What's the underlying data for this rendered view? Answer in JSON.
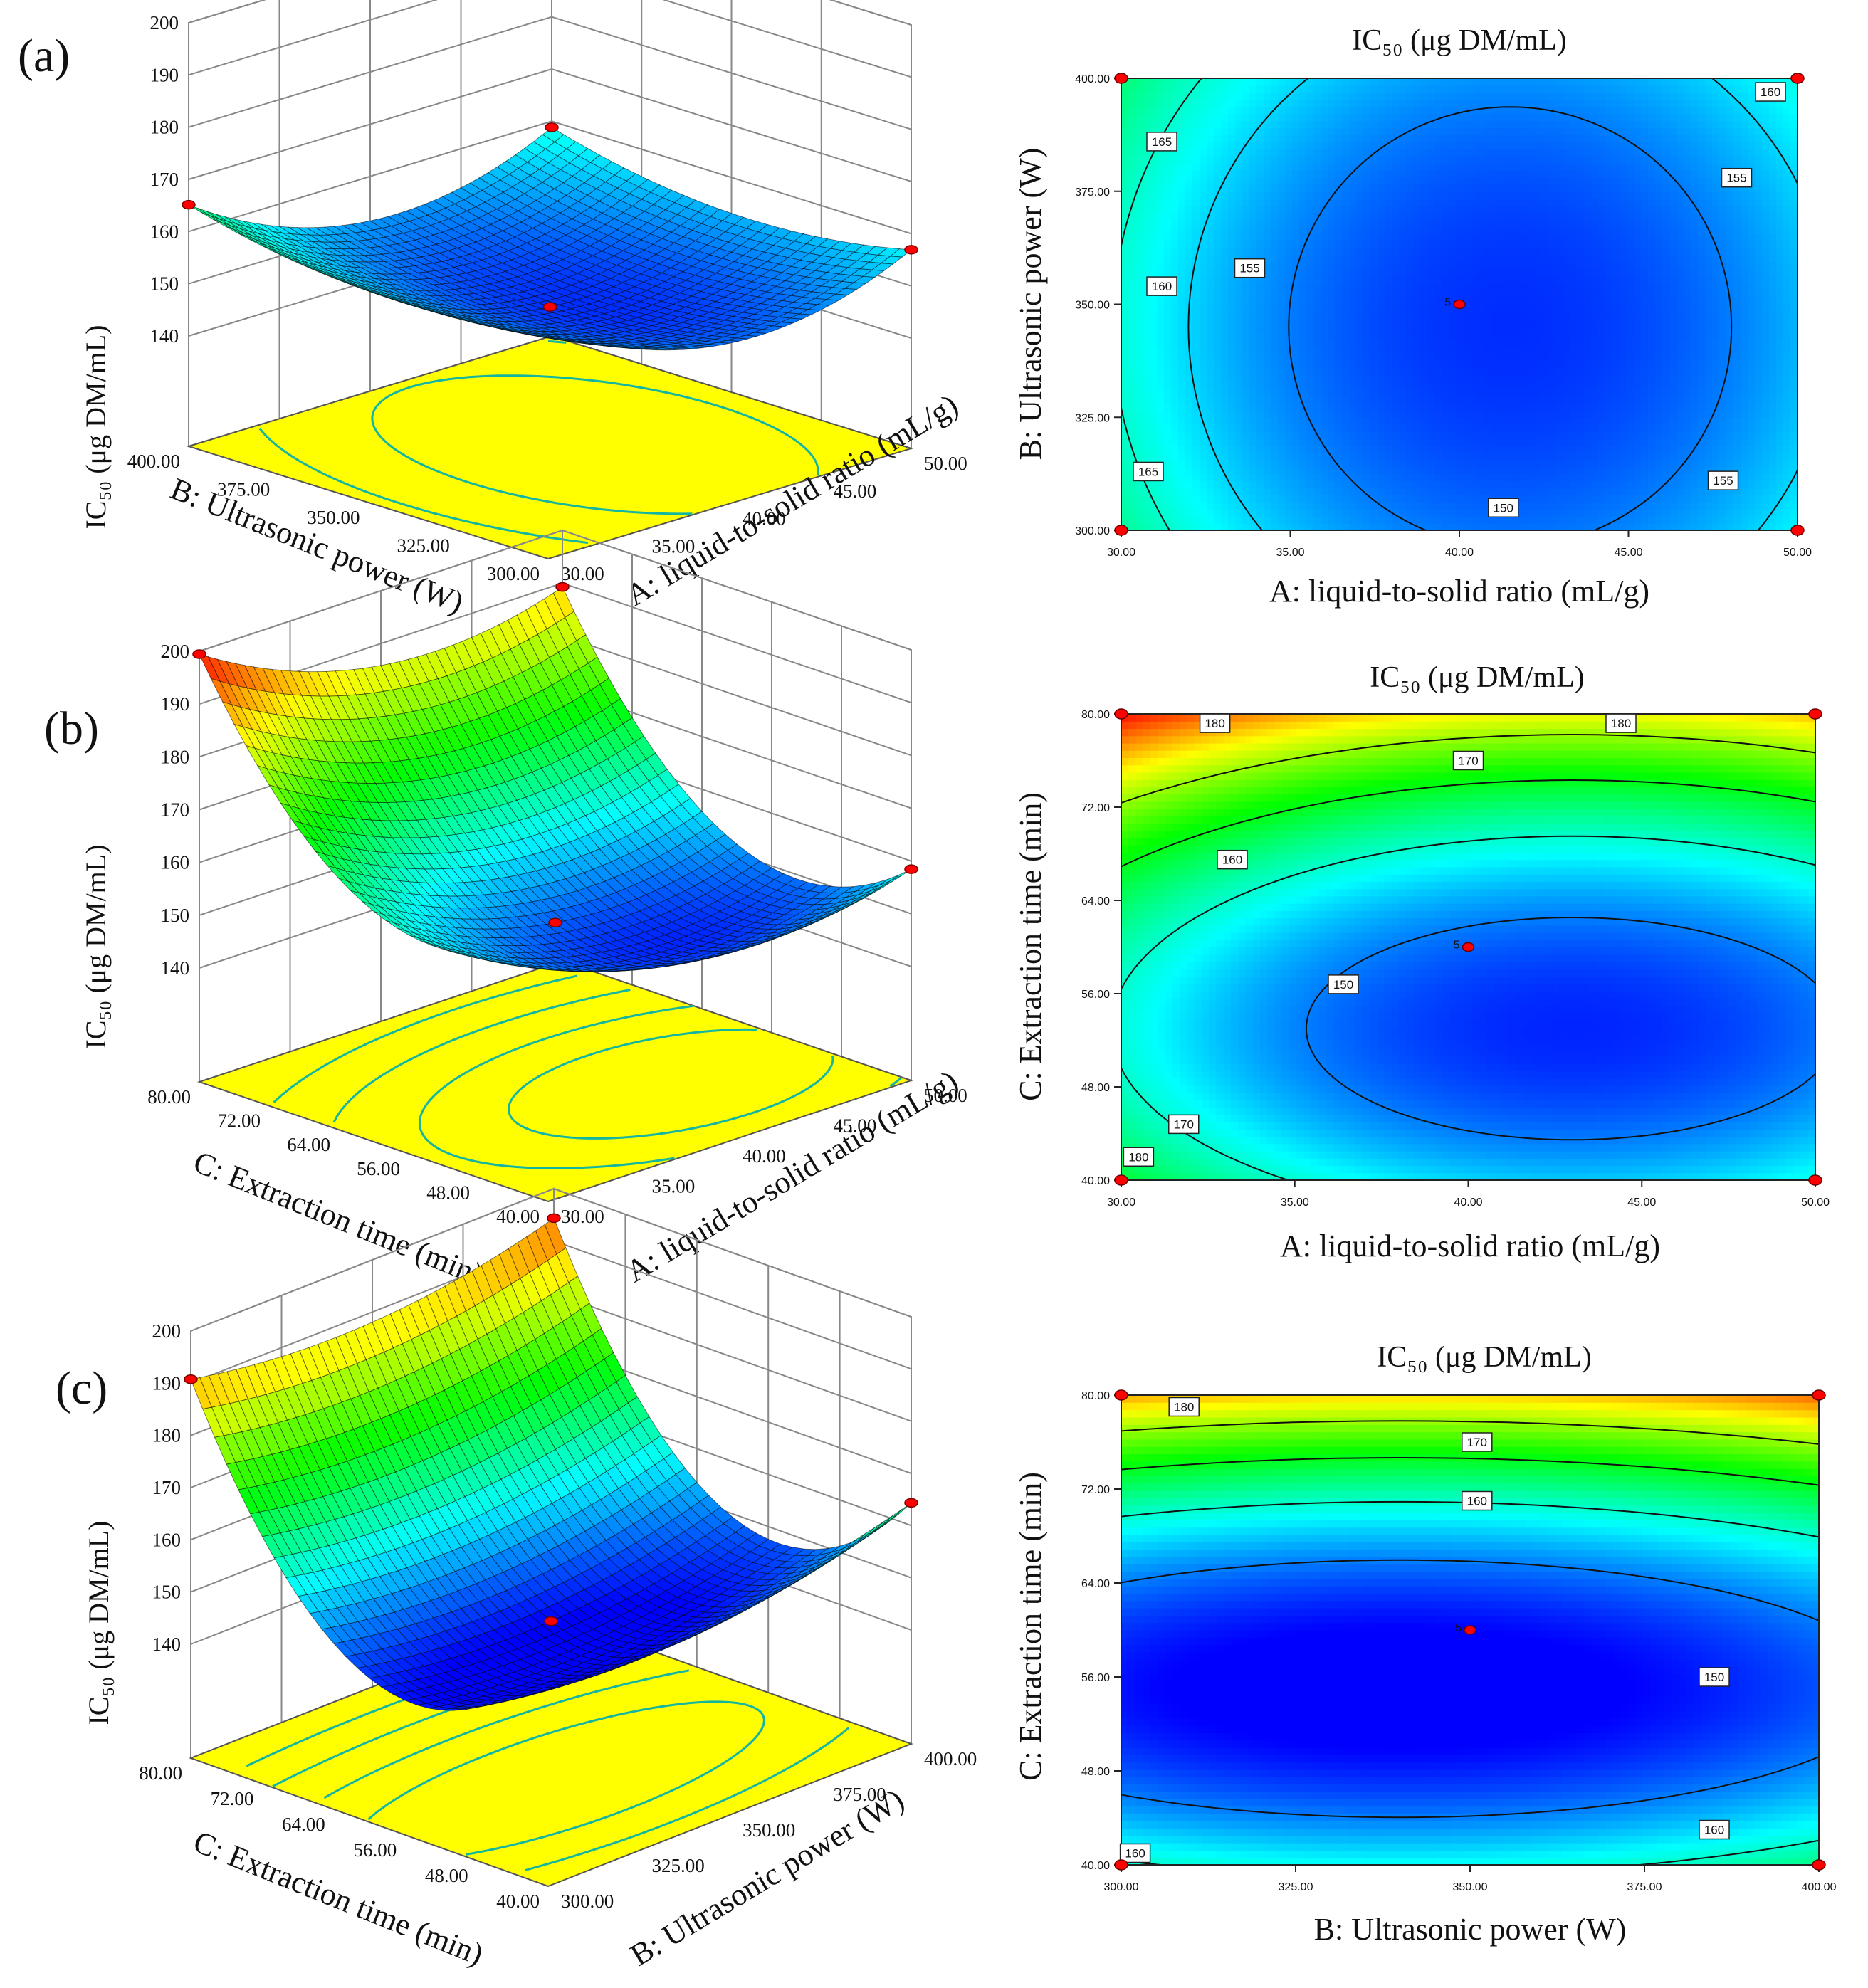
{
  "panel_labels": [
    "(a)",
    "(b)",
    "(c)"
  ],
  "response_title": "IC₅₀ (μg DM/mL)",
  "colors": {
    "surface_low": "#0000ff",
    "surface_mid": "#00ff00",
    "surface_high": "#ff0000",
    "floor": "#ffff00",
    "design_point": "#ff0000"
  },
  "chart_data": [
    {
      "type": "contour",
      "panel": "(a)",
      "view": "surface-3d",
      "x_factor": "A: liquid-to-solid ratio (mL/g)",
      "y_factor": "B: Ultrasonic power (W)",
      "z_label": "IC₅₀ (μg DM/mL)",
      "x_ticks": [
        "30.00",
        "35.00",
        "40.00",
        "45.00",
        "50.00"
      ],
      "y_ticks": [
        "300.00",
        "325.00",
        "350.00",
        "375.00",
        "400.00"
      ],
      "z_ticks": [
        "140",
        "150",
        "160",
        "170",
        "180",
        "190",
        "200"
      ],
      "xlim": [
        30,
        50
      ],
      "ylim": [
        300,
        400
      ],
      "zlim": [
        140,
        200
      ],
      "model": {
        "x0": 41.5,
        "y0": 345,
        "zmin": 145.5,
        "ax": 0.105,
        "ay": 0.0019
      }
    },
    {
      "type": "contour",
      "panel": "(a)",
      "view": "contour-2d",
      "title": "IC₅₀ (μg DM/mL)",
      "xlabel": "A: liquid-to-solid ratio (mL/g)",
      "ylabel": "B: Ultrasonic power (W)",
      "x_ticks": [
        "30.00",
        "35.00",
        "40.00",
        "45.00",
        "50.00"
      ],
      "y_ticks": [
        "300.00",
        "325.00",
        "350.00",
        "375.00",
        "400.00"
      ],
      "xlim": [
        30,
        50
      ],
      "ylim": [
        300,
        400
      ],
      "levels": [
        "150",
        "155",
        "160",
        "165"
      ],
      "contour_labels": [
        {
          "text": "165",
          "x": 31.2,
          "y": 386
        },
        {
          "text": "160",
          "x": 31.2,
          "y": 354
        },
        {
          "text": "155",
          "x": 33.8,
          "y": 358
        },
        {
          "text": "165",
          "x": 30.8,
          "y": 313
        },
        {
          "text": "150",
          "x": 41.3,
          "y": 305
        },
        {
          "text": "155",
          "x": 47.8,
          "y": 311
        },
        {
          "text": "155",
          "x": 48.2,
          "y": 378
        },
        {
          "text": "160",
          "x": 49.2,
          "y": 397
        }
      ],
      "center_point": {
        "label": "5",
        "x": 40,
        "y": 350
      }
    },
    {
      "type": "contour",
      "panel": "(b)",
      "view": "surface-3d",
      "x_factor": "A: liquid-to-solid ratio (mL/g)",
      "y_factor": "C: Extraction time (min)",
      "z_label": "IC₅₀ (μg DM/mL)",
      "x_ticks": [
        "30.00",
        "35.00",
        "40.00",
        "45.00",
        "50.00"
      ],
      "y_ticks": [
        "40.00",
        "48.00",
        "56.00",
        "64.00",
        "72.00",
        "80.00"
      ],
      "z_ticks": [
        "140",
        "150",
        "160",
        "170",
        "180",
        "190",
        "200"
      ],
      "xlim": [
        30,
        50
      ],
      "ylim": [
        40,
        80
      ],
      "zlim": [
        140,
        200
      ],
      "model": {
        "x0": 43,
        "y0": 53,
        "zmin": 145,
        "ax": 0.085,
        "ay": 0.055
      }
    },
    {
      "type": "contour",
      "panel": "(b)",
      "view": "contour-2d",
      "title": "IC₅₀ (μg DM/mL)",
      "xlabel": "A: liquid-to-solid ratio (mL/g)",
      "ylabel": "C: Extraction time (min)",
      "x_ticks": [
        "30.00",
        "35.00",
        "40.00",
        "45.00",
        "50.00"
      ],
      "y_ticks": [
        "40.00",
        "48.00",
        "56.00",
        "64.00",
        "72.00",
        "80.00"
      ],
      "xlim": [
        30,
        50
      ],
      "ylim": [
        40,
        80
      ],
      "levels": [
        "150",
        "160",
        "170",
        "180"
      ],
      "contour_labels": [
        {
          "text": "180",
          "x": 32.7,
          "y": 79.2
        },
        {
          "text": "180",
          "x": 44.4,
          "y": 79.2
        },
        {
          "text": "170",
          "x": 40,
          "y": 76
        },
        {
          "text": "160",
          "x": 33.2,
          "y": 67.5
        },
        {
          "text": "150",
          "x": 36.4,
          "y": 56.8
        },
        {
          "text": "170",
          "x": 31.8,
          "y": 44.8
        },
        {
          "text": "180",
          "x": 30.5,
          "y": 42
        }
      ],
      "center_point": {
        "label": "5",
        "x": 40,
        "y": 60
      }
    },
    {
      "type": "contour",
      "panel": "(c)",
      "view": "surface-3d",
      "x_factor": "B: Ultrasonic power (W)",
      "y_factor": "C: Extraction time (min)",
      "z_label": "IC₅₀ (μg DM/mL)",
      "x_ticks": [
        "300.00",
        "325.00",
        "350.00",
        "375.00",
        "400.00"
      ],
      "y_ticks": [
        "40.00",
        "48.00",
        "56.00",
        "64.00",
        "72.00",
        "80.00"
      ],
      "z_ticks": [
        "140",
        "150",
        "160",
        "170",
        "180",
        "190",
        "200"
      ],
      "xlim": [
        300,
        400
      ],
      "ylim": [
        40,
        80
      ],
      "zlim": [
        140,
        200
      ],
      "model": {
        "x0": 340,
        "y0": 55,
        "zmin": 141,
        "ax": 0.0018,
        "ay": 0.075
      }
    },
    {
      "type": "contour",
      "panel": "(c)",
      "view": "contour-2d",
      "title": "IC₅₀ (μg DM/mL)",
      "xlabel": "B: Ultrasonic power (W)",
      "ylabel": "C: Extraction time (min)",
      "x_ticks": [
        "300.00",
        "325.00",
        "350.00",
        "375.00",
        "400.00"
      ],
      "y_ticks": [
        "40.00",
        "48.00",
        "56.00",
        "64.00",
        "72.00",
        "80.00"
      ],
      "xlim": [
        300,
        400
      ],
      "ylim": [
        40,
        80
      ],
      "levels": [
        "150",
        "160",
        "170",
        "180"
      ],
      "contour_labels": [
        {
          "text": "180",
          "x": 309,
          "y": 79
        },
        {
          "text": "170",
          "x": 351,
          "y": 76
        },
        {
          "text": "160",
          "x": 351,
          "y": 71
        },
        {
          "text": "150",
          "x": 385,
          "y": 56
        },
        {
          "text": "160",
          "x": 385,
          "y": 43
        },
        {
          "text": "160",
          "x": 302,
          "y": 41
        }
      ],
      "center_point": {
        "label": "5",
        "x": 350,
        "y": 60
      }
    }
  ]
}
